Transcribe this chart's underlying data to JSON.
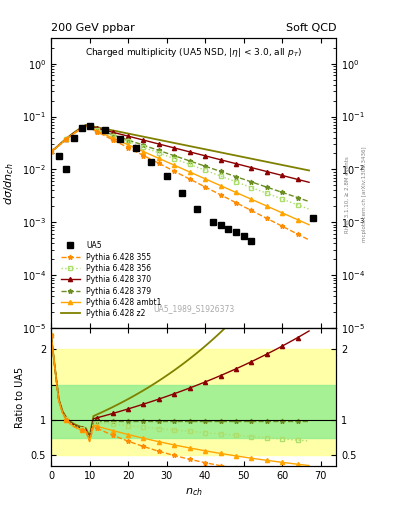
{
  "title_left": "200 GeV ppbar",
  "title_right": "Soft QCD",
  "plot_title": "Charged multiplicity (UA5 NSD, |\\u03b7| < 3.0, all p_{T})",
  "ylabel_main": "d\\u03c3/dn_{ch}",
  "ylabel_ratio": "Ratio to UA5",
  "xlabel": "n_{ch}",
  "watermark": "UA5_1989_S1926373",
  "legend_entries": [
    "UA5",
    "Pythia 6.428 355",
    "Pythia 6.428 356",
    "Pythia 6.428 370",
    "Pythia 6.428 379",
    "Pythia 6.428 ambt1",
    "Pythia 6.428 z2"
  ],
  "colors": {
    "ua5": "#000000",
    "p355": "#ff8c00",
    "p356": "#adde6b",
    "p370": "#8b0000",
    "p379": "#6b8e23",
    "pambt1": "#ffa500",
    "pz2": "#808000"
  },
  "ua5_data_x": [
    2,
    4,
    6,
    8,
    10,
    14,
    18,
    22,
    26,
    30,
    34,
    38,
    42,
    44,
    46,
    48,
    50,
    52,
    68
  ],
  "ua5_data_y": [
    0.018,
    0.01,
    0.04,
    0.06,
    0.065,
    0.055,
    0.038,
    0.025,
    0.014,
    0.0075,
    0.0035,
    0.0018,
    0.001,
    0.0009,
    0.00075,
    0.00065,
    0.00055,
    0.00045,
    0.0012
  ],
  "ylim_main": [
    1e-05,
    3.0
  ],
  "ylim_ratio": [
    0.35,
    2.3
  ],
  "xlim": [
    0,
    74
  ],
  "band_yellow": [
    0.5,
    2.0
  ],
  "band_green": [
    0.75,
    1.5
  ],
  "right_label1": "Rivet 3.1.10, ≥ 2.8M events",
  "right_label2": "mcplots.cern.ch [arXiv:1306.3436]"
}
